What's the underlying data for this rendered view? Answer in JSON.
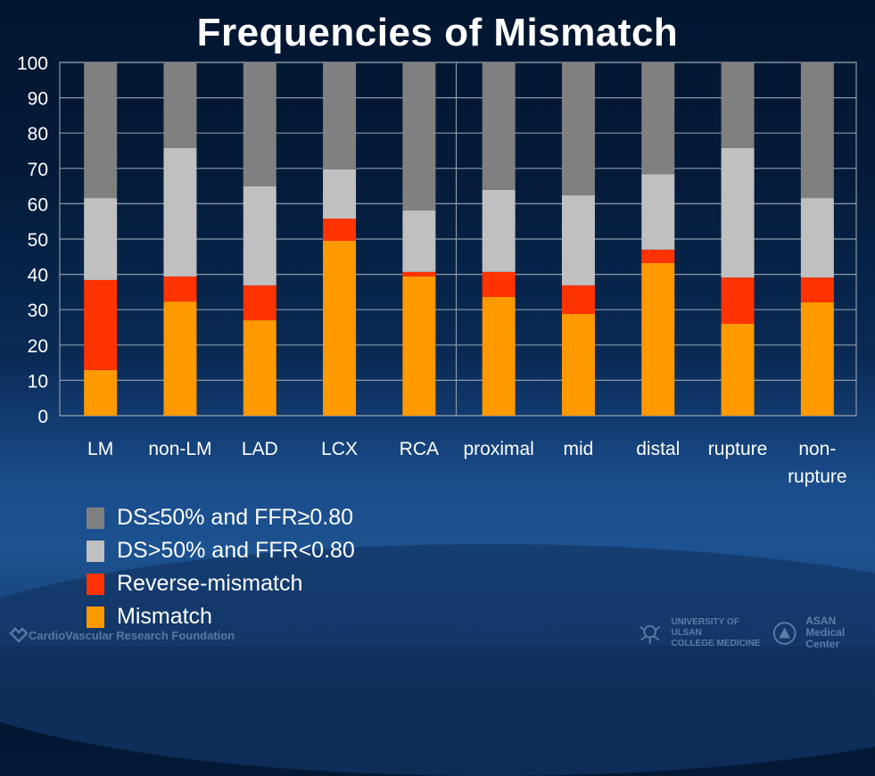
{
  "slide": {
    "title": "Frequencies of Mismatch",
    "footer": {
      "left_logo_icon": "heart-outline-icon",
      "left_text": "CardioVascular Research Foundation",
      "univ_logo_icon": "university-crest-icon",
      "univ_line1": "UNIVERSITY OF ULSAN",
      "univ_line2": "COLLEGE MEDICINE",
      "asan_logo_icon": "asan-circle-logo-icon",
      "asan_line1": "ASAN",
      "asan_line2": "Medical Center"
    }
  },
  "chart_data": {
    "type": "bar",
    "stacked": true,
    "title": "Frequencies of Mismatch",
    "xlabel": "",
    "ylabel": "",
    "ylim": [
      0,
      100
    ],
    "yticks": [
      0,
      10,
      20,
      30,
      40,
      50,
      60,
      70,
      80,
      90,
      100
    ],
    "grid": true,
    "legend_position": "bottom-left",
    "categories": [
      "LM",
      "non-LM",
      "LAD",
      "LCX",
      "RCA",
      "proximal",
      "mid",
      "distal",
      "rupture",
      "non-rupture"
    ],
    "category_labels": [
      [
        "LM"
      ],
      [
        "non-LM"
      ],
      [
        "LAD"
      ],
      [
        "LCX"
      ],
      [
        "RCA"
      ],
      [
        "proximal"
      ],
      [
        "mid"
      ],
      [
        "distal"
      ],
      [
        "rupture"
      ],
      [
        "non-",
        "rupture"
      ]
    ],
    "series": [
      {
        "name": "Mismatch",
        "color": "#ff9900",
        "values": [
          12.9,
          32.3,
          27.0,
          49.5,
          39.4,
          33.6,
          28.8,
          43.2,
          26.0,
          32.1
        ]
      },
      {
        "name": "Reverse-mismatch",
        "color": "#ff3300",
        "values": [
          25.5,
          7.1,
          9.9,
          6.3,
          1.3,
          7.1,
          8.1,
          3.8,
          13.1,
          7.0
        ]
      },
      {
        "name": "DS>50% and FFR<0.80",
        "color": "#c0c0c0",
        "values": [
          23.2,
          36.4,
          28.0,
          13.9,
          17.4,
          23.2,
          25.5,
          21.4,
          36.7,
          22.5
        ]
      },
      {
        "name": "DS≤50% and FFR≥0.80",
        "color": "#808080",
        "values": [
          38.4,
          24.2,
          35.1,
          30.3,
          41.9,
          36.1,
          37.6,
          31.6,
          24.2,
          38.4
        ]
      }
    ],
    "legend_order": [
      {
        "name": "DS≤50% and FFR≥0.80",
        "color": "#808080"
      },
      {
        "name": "DS>50% and FFR<0.80",
        "color": "#c0c0c0"
      },
      {
        "name": "Reverse-mismatch",
        "color": "#ff3300"
      },
      {
        "name": "Mismatch",
        "color": "#ff9900"
      }
    ]
  }
}
